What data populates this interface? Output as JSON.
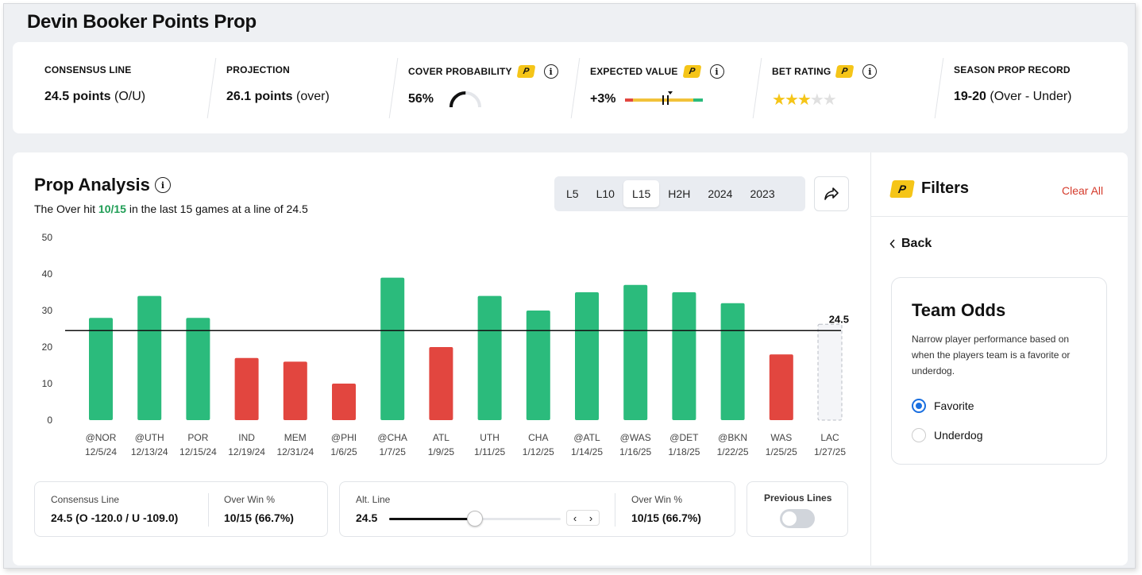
{
  "page_title": "Devin Booker Points Prop",
  "stats": {
    "consensus_line": {
      "label": "CONSENSUS LINE",
      "value": "24.5 points",
      "suffix": "(O/U)"
    },
    "projection": {
      "label": "PROJECTION",
      "value": "26.1 points",
      "suffix": "(over)"
    },
    "cover_probability": {
      "label": "COVER PROBABILITY",
      "value": "56%",
      "gauge_fraction": 0.56
    },
    "expected_value": {
      "label": "EXPECTED VALUE",
      "value": "+3%"
    },
    "bet_rating": {
      "label": "BET RATING",
      "stars_filled": 3,
      "stars_total": 5
    },
    "season_record": {
      "label": "SEASON PROP RECORD",
      "value": "19-20",
      "suffix": "(Over - Under)"
    },
    "badge_letter": "P"
  },
  "prop_analysis": {
    "title": "Prop Analysis",
    "subtitle_prefix": "The Over hit ",
    "subtitle_hit": "10/15",
    "subtitle_suffix": " in the last 15 games at a line of 24.5",
    "tabs": [
      "L5",
      "L10",
      "L15",
      "H2H",
      "2024",
      "2023"
    ],
    "active_tab": "L15"
  },
  "chart_data": {
    "type": "bar",
    "title": "",
    "ylim": [
      0,
      50
    ],
    "yticks": [
      "50",
      "40",
      "30",
      "20",
      "10",
      "0"
    ],
    "line_value": 24.5,
    "line_label": "24.5",
    "categories": [
      {
        "opp": "@NOR",
        "date": "12/5/24"
      },
      {
        "opp": "@UTH",
        "date": "12/13/24"
      },
      {
        "opp": "POR",
        "date": "12/15/24"
      },
      {
        "opp": "IND",
        "date": "12/19/24"
      },
      {
        "opp": "MEM",
        "date": "12/31/24"
      },
      {
        "opp": "@PHI",
        "date": "1/6/25"
      },
      {
        "opp": "@CHA",
        "date": "1/7/25"
      },
      {
        "opp": "ATL",
        "date": "1/9/25"
      },
      {
        "opp": "UTH",
        "date": "1/11/25"
      },
      {
        "opp": "CHA",
        "date": "1/12/25"
      },
      {
        "opp": "@ATL",
        "date": "1/14/25"
      },
      {
        "opp": "@WAS",
        "date": "1/16/25"
      },
      {
        "opp": "@DET",
        "date": "1/18/25"
      },
      {
        "opp": "@BKN",
        "date": "1/22/25"
      },
      {
        "opp": "WAS",
        "date": "1/25/25"
      },
      {
        "opp": "LAC",
        "date": "1/27/25"
      }
    ],
    "values": [
      28,
      34,
      28,
      17,
      16,
      10,
      39,
      20,
      34,
      30,
      35,
      37,
      35,
      32,
      18,
      null
    ],
    "colors": {
      "over": "#2bbb7c",
      "under": "#e2463f",
      "upcoming": "#f4f5f8"
    }
  },
  "bottom": {
    "consensus": {
      "label": "Consensus Line",
      "value": "24.5 (O -120.0 / U -109.0)"
    },
    "over_win_1": {
      "label": "Over Win %",
      "value": "10/15 (66.7%)"
    },
    "alt_line": {
      "label": "Alt. Line",
      "value": "24.5",
      "slider_fraction": 0.5
    },
    "over_win_2": {
      "label": "Over Win %",
      "value": "10/15 (66.7%)"
    },
    "previous_lines": {
      "label": "Previous Lines"
    }
  },
  "filters": {
    "title": "Filters",
    "clear_all": "Clear All",
    "back": "Back",
    "team_odds": {
      "title": "Team Odds",
      "description": "Narrow player performance based on when the players team is a favorite or underdog.",
      "options": [
        "Favorite",
        "Underdog"
      ],
      "selected": "Favorite"
    }
  }
}
